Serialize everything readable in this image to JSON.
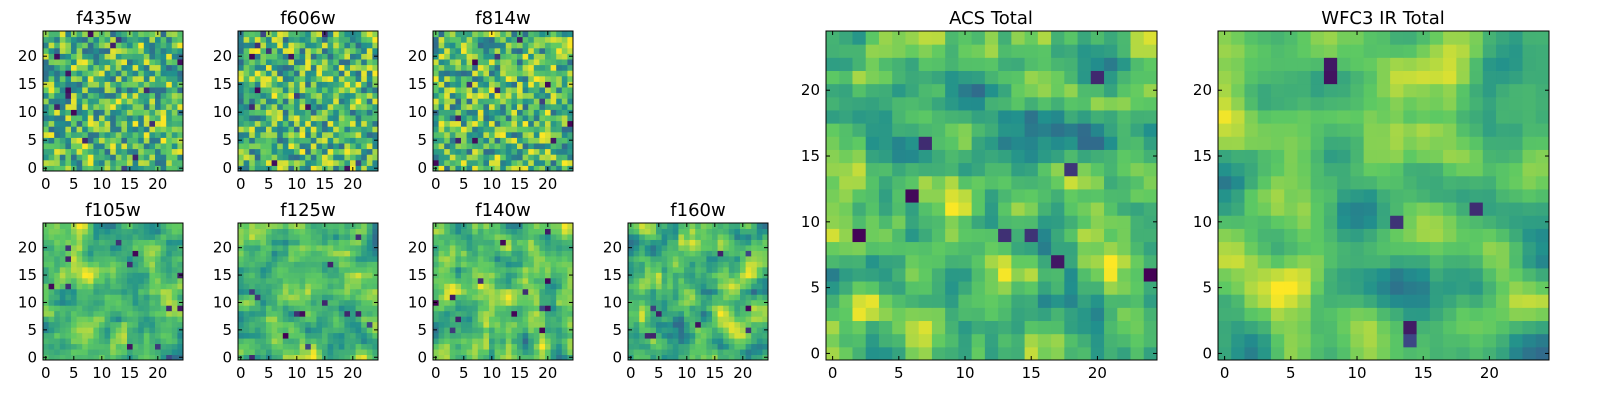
{
  "figure": {
    "background": "#ffffff"
  },
  "colormap": {
    "name": "viridis",
    "stops": [
      "#440154",
      "#3b528b",
      "#21908d",
      "#5dc963",
      "#fde725"
    ]
  },
  "chart_data": [
    {
      "type": "heatmap",
      "title": "f435w",
      "size": 25,
      "seed": 11,
      "smooth": 0,
      "dark_fraction": 0.025,
      "xticks": [
        0,
        5,
        10,
        15,
        20
      ],
      "yticks": [
        0,
        5,
        10,
        15,
        20
      ],
      "xlim": [
        0,
        24
      ],
      "ylim": [
        0,
        24
      ]
    },
    {
      "type": "heatmap",
      "title": "f606w",
      "size": 25,
      "seed": 23,
      "smooth": 0,
      "dark_fraction": 0.02,
      "xticks": [
        0,
        5,
        10,
        15,
        20
      ],
      "yticks": [
        0,
        5,
        10,
        15,
        20
      ],
      "xlim": [
        0,
        24
      ],
      "ylim": [
        0,
        24
      ]
    },
    {
      "type": "heatmap",
      "title": "f814w",
      "size": 25,
      "seed": 37,
      "smooth": 0,
      "dark_fraction": 0.02,
      "xticks": [
        0,
        5,
        10,
        15,
        20
      ],
      "yticks": [
        0,
        5,
        10,
        15,
        20
      ],
      "xlim": [
        0,
        24
      ],
      "ylim": [
        0,
        24
      ]
    },
    {
      "type": "heatmap",
      "title": "f105w",
      "size": 25,
      "seed": 41,
      "smooth": 1,
      "dark_fraction": 0.02,
      "xticks": [
        0,
        5,
        10,
        15,
        20
      ],
      "yticks": [
        0,
        5,
        10,
        15,
        20
      ],
      "xlim": [
        0,
        24
      ],
      "ylim": [
        0,
        24
      ]
    },
    {
      "type": "heatmap",
      "title": "f125w",
      "size": 25,
      "seed": 53,
      "smooth": 1,
      "dark_fraction": 0.02,
      "xticks": [
        0,
        5,
        10,
        15,
        20
      ],
      "yticks": [
        0,
        5,
        10,
        15,
        20
      ],
      "xlim": [
        0,
        24
      ],
      "ylim": [
        0,
        24
      ]
    },
    {
      "type": "heatmap",
      "title": "f140w",
      "size": 25,
      "seed": 67,
      "smooth": 1,
      "dark_fraction": 0.02,
      "xticks": [
        0,
        5,
        10,
        15,
        20
      ],
      "yticks": [
        0,
        5,
        10,
        15,
        20
      ],
      "xlim": [
        0,
        24
      ],
      "ylim": [
        0,
        24
      ]
    },
    {
      "type": "heatmap",
      "title": "f160w",
      "size": 25,
      "seed": 79,
      "smooth": 1,
      "dark_fraction": 0.015,
      "xticks": [
        0,
        5,
        10,
        15,
        20
      ],
      "yticks": [
        0,
        5,
        10,
        15,
        20
      ],
      "xlim": [
        0,
        24
      ],
      "ylim": [
        0,
        24
      ]
    },
    {
      "type": "heatmap",
      "title": "ACS Total",
      "size": 25,
      "seed": 97,
      "smooth": 1,
      "dark_fraction": 0.015,
      "xticks": [
        0,
        5,
        10,
        15,
        20
      ],
      "yticks": [
        0,
        5,
        10,
        15,
        20
      ],
      "xlim": [
        0,
        24
      ],
      "ylim": [
        0,
        24
      ]
    },
    {
      "type": "heatmap",
      "title": "WFC3 IR Total",
      "size": 25,
      "seed": 131,
      "smooth": 2,
      "dark_fraction": 0.01,
      "xticks": [
        0,
        5,
        10,
        15,
        20
      ],
      "yticks": [
        0,
        5,
        10,
        15,
        20
      ],
      "xlim": [
        0,
        24
      ],
      "ylim": [
        0,
        24
      ]
    }
  ]
}
